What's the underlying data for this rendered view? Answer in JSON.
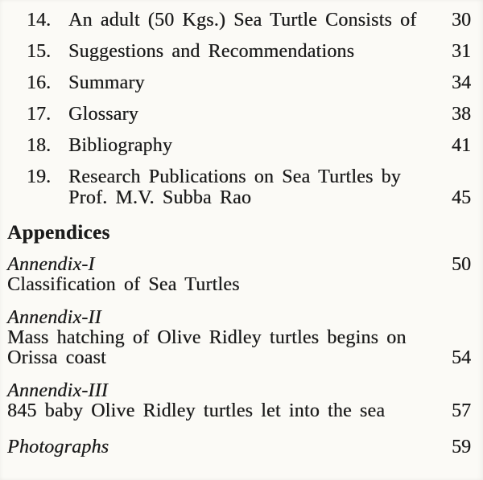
{
  "page": {
    "background_color": "#fbfaf6",
    "text_color": "#1b1b1b"
  },
  "toc": {
    "items": [
      {
        "num": "14.",
        "title": "An adult (50 Kgs.) Sea Turtle Consists of",
        "page": "30"
      },
      {
        "num": "15.",
        "title": "Suggestions and Recommendations",
        "page": "31"
      },
      {
        "num": "16.",
        "title": "Summary",
        "page": "34"
      },
      {
        "num": "17.",
        "title": "Glossary",
        "page": "38"
      },
      {
        "num": "18.",
        "title": "Bibliography",
        "page": "41"
      },
      {
        "num": "19.",
        "title_line1": "Research Publications on Sea Turtles by",
        "title_line2": "Prof. M.V. Subba Rao",
        "page": "45"
      }
    ]
  },
  "appendices": {
    "heading": "Appendices",
    "entries": [
      {
        "label": "Annendix-I",
        "line1": "Classification of Sea Turtles",
        "page": "50"
      },
      {
        "label": "Annendix-II",
        "line1": "Mass hatching of Olive Ridley turtles begins on",
        "line2": "Orissa coast",
        "page": "54"
      },
      {
        "label": "Annendix-III",
        "line1": "845 baby Olive Ridley turtles let into the sea",
        "page": "57"
      }
    ],
    "photographs": {
      "label": "Photographs",
      "page": "59"
    }
  }
}
